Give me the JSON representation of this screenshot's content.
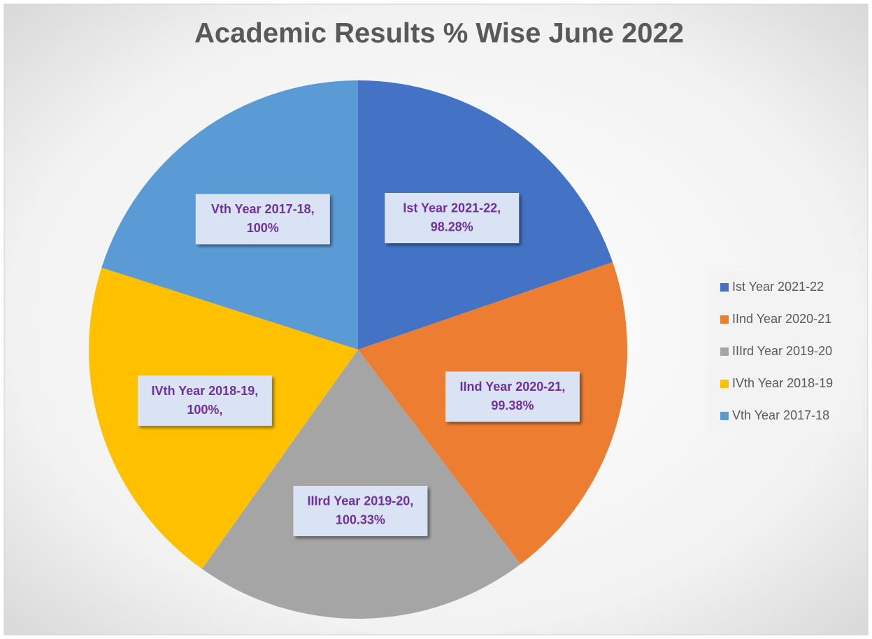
{
  "chart_data": {
    "type": "pie",
    "title": "Academic Results % Wise June 2022",
    "categories": [
      "Ist Year 2021-22",
      "IInd Year 2020-21",
      "IIIrd Year 2019-20",
      "IVth Year 2018-19",
      "Vth Year 2017-18"
    ],
    "values": [
      98.28,
      99.38,
      100.33,
      100,
      100
    ],
    "data_labels": [
      "Ist Year 2021-22,",
      "IInd Year 2020-21,",
      "IIIrd Year 2019-20,",
      "IVth Year 2018-19,",
      "Vth Year 2017-18,"
    ],
    "value_labels": [
      "98.28%",
      "99.38%",
      "100.33%",
      "100%,",
      "100%"
    ],
    "colors": [
      "#4472c4",
      "#ed7d31",
      "#a5a5a5",
      "#ffc000",
      "#5b9bd5"
    ],
    "legend": "right"
  }
}
